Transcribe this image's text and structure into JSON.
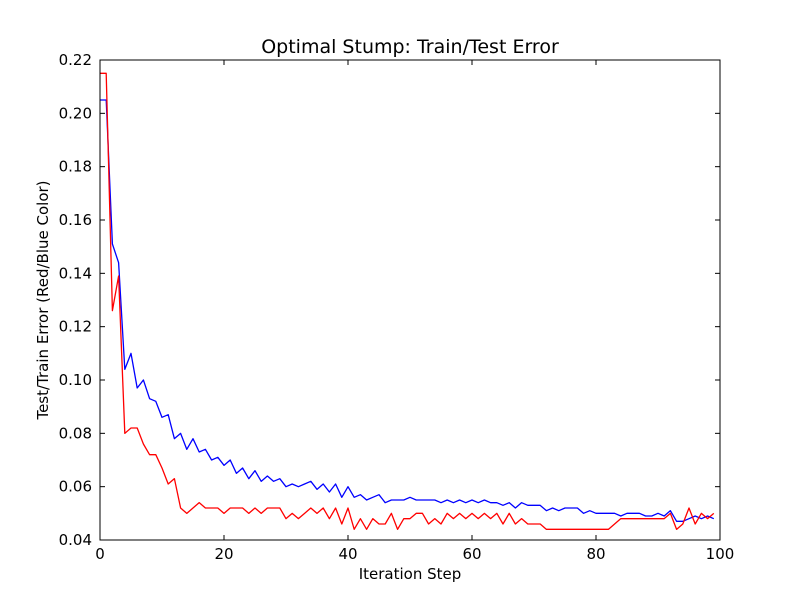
{
  "chart_data": {
    "type": "line",
    "title": "Optimal Stump: Train/Test Error",
    "xlabel": "Iteration Step",
    "ylabel": "Test/Train Error (Red/Blue Color)",
    "xlim": [
      0,
      100
    ],
    "ylim": [
      0.04,
      0.22
    ],
    "grid": false,
    "x_ticks": [
      0,
      20,
      40,
      60,
      80,
      100
    ],
    "x_tick_labels": [
      "0",
      "20",
      "40",
      "60",
      "80",
      "100"
    ],
    "y_ticks": [
      0.04,
      0.06,
      0.08,
      0.1,
      0.12,
      0.14,
      0.16,
      0.18,
      0.2,
      0.22
    ],
    "y_tick_labels": [
      "0.04",
      "0.06",
      "0.08",
      "0.10",
      "0.12",
      "0.14",
      "0.16",
      "0.18",
      "0.20",
      "0.22"
    ],
    "series": [
      {
        "color": "#0000ff",
        "x": [
          0,
          1,
          2,
          3,
          4,
          5,
          6,
          7,
          8,
          9,
          10,
          11,
          12,
          13,
          14,
          15,
          16,
          17,
          18,
          19,
          20,
          21,
          22,
          23,
          24,
          25,
          26,
          27,
          28,
          29,
          30,
          31,
          32,
          33,
          34,
          35,
          36,
          37,
          38,
          39,
          40,
          41,
          42,
          43,
          44,
          45,
          46,
          47,
          48,
          49,
          50,
          51,
          52,
          53,
          54,
          55,
          56,
          57,
          58,
          59,
          60,
          61,
          62,
          63,
          64,
          65,
          66,
          67,
          68,
          69,
          70,
          71,
          72,
          73,
          74,
          75,
          76,
          77,
          78,
          79,
          80,
          81,
          82,
          83,
          84,
          85,
          86,
          87,
          88,
          89,
          90,
          91,
          92,
          93,
          94,
          95,
          96,
          97,
          98,
          99
        ],
        "values": [
          0.205,
          0.205,
          0.151,
          0.144,
          0.104,
          0.11,
          0.097,
          0.1,
          0.093,
          0.092,
          0.086,
          0.087,
          0.078,
          0.08,
          0.074,
          0.078,
          0.073,
          0.074,
          0.07,
          0.071,
          0.068,
          0.07,
          0.065,
          0.067,
          0.063,
          0.066,
          0.062,
          0.064,
          0.062,
          0.063,
          0.06,
          0.061,
          0.06,
          0.061,
          0.062,
          0.059,
          0.061,
          0.058,
          0.061,
          0.056,
          0.06,
          0.056,
          0.057,
          0.055,
          0.056,
          0.057,
          0.054,
          0.055,
          0.055,
          0.055,
          0.056,
          0.055,
          0.055,
          0.055,
          0.055,
          0.054,
          0.055,
          0.054,
          0.055,
          0.054,
          0.055,
          0.054,
          0.055,
          0.054,
          0.054,
          0.053,
          0.054,
          0.052,
          0.054,
          0.053,
          0.053,
          0.053,
          0.051,
          0.052,
          0.051,
          0.052,
          0.052,
          0.052,
          0.05,
          0.051,
          0.05,
          0.05,
          0.05,
          0.05,
          0.049,
          0.05,
          0.05,
          0.05,
          0.049,
          0.049,
          0.05,
          0.049,
          0.051,
          0.047,
          0.047,
          0.048,
          0.049,
          0.048,
          0.049,
          0.048
        ]
      },
      {
        "color": "#ff0000",
        "x": [
          0,
          1,
          2,
          3,
          4,
          5,
          6,
          7,
          8,
          9,
          10,
          11,
          12,
          13,
          14,
          15,
          16,
          17,
          18,
          19,
          20,
          21,
          22,
          23,
          24,
          25,
          26,
          27,
          28,
          29,
          30,
          31,
          32,
          33,
          34,
          35,
          36,
          37,
          38,
          39,
          40,
          41,
          42,
          43,
          44,
          45,
          46,
          47,
          48,
          49,
          50,
          51,
          52,
          53,
          54,
          55,
          56,
          57,
          58,
          59,
          60,
          61,
          62,
          63,
          64,
          65,
          66,
          67,
          68,
          69,
          70,
          71,
          72,
          73,
          74,
          75,
          76,
          77,
          78,
          79,
          80,
          81,
          82,
          83,
          84,
          85,
          86,
          87,
          88,
          89,
          90,
          91,
          92,
          93,
          94,
          95,
          96,
          97,
          98,
          99
        ],
        "values": [
          0.215,
          0.215,
          0.126,
          0.139,
          0.08,
          0.082,
          0.082,
          0.076,
          0.072,
          0.072,
          0.067,
          0.061,
          0.063,
          0.052,
          0.05,
          0.052,
          0.054,
          0.052,
          0.052,
          0.052,
          0.05,
          0.052,
          0.052,
          0.052,
          0.05,
          0.052,
          0.05,
          0.052,
          0.052,
          0.052,
          0.048,
          0.05,
          0.048,
          0.05,
          0.052,
          0.05,
          0.052,
          0.048,
          0.052,
          0.046,
          0.052,
          0.044,
          0.048,
          0.044,
          0.048,
          0.046,
          0.046,
          0.05,
          0.044,
          0.048,
          0.048,
          0.05,
          0.05,
          0.046,
          0.048,
          0.046,
          0.05,
          0.048,
          0.05,
          0.048,
          0.05,
          0.048,
          0.05,
          0.048,
          0.05,
          0.046,
          0.05,
          0.046,
          0.048,
          0.046,
          0.046,
          0.046,
          0.044,
          0.044,
          0.044,
          0.044,
          0.044,
          0.044,
          0.044,
          0.044,
          0.044,
          0.044,
          0.044,
          0.046,
          0.048,
          0.048,
          0.048,
          0.048,
          0.048,
          0.048,
          0.048,
          0.048,
          0.05,
          0.044,
          0.046,
          0.052,
          0.046,
          0.05,
          0.048,
          0.05
        ]
      }
    ]
  }
}
